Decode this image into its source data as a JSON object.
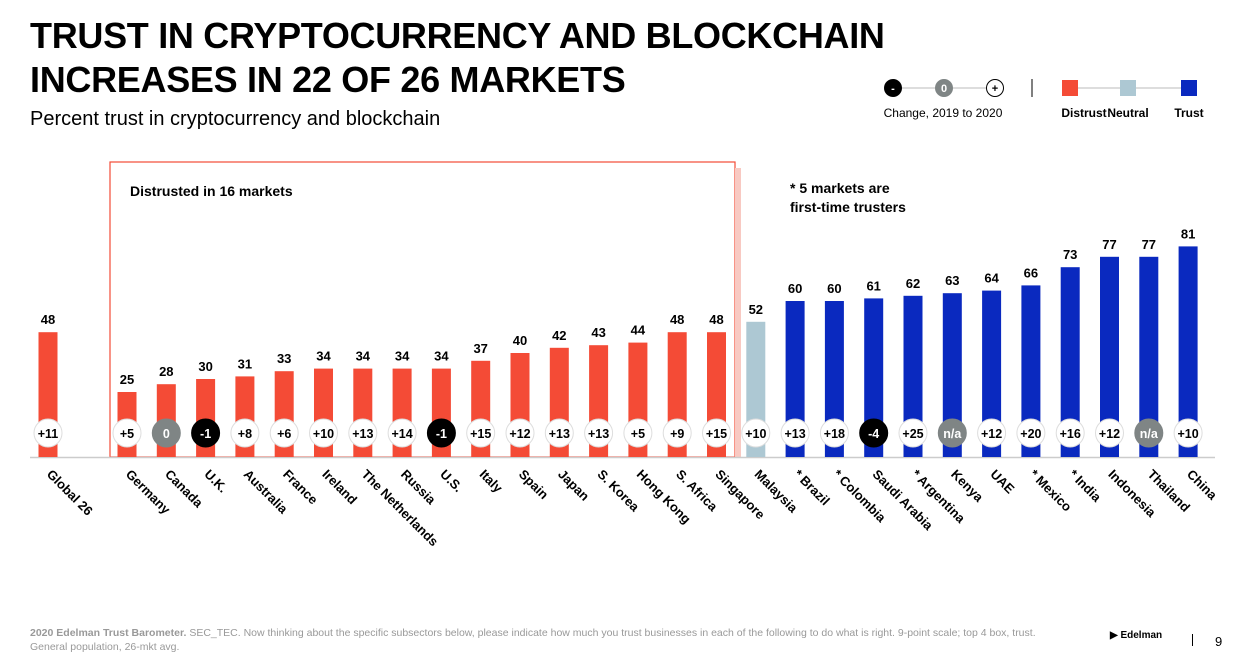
{
  "title_line1": "TRUST IN CRYPTOCURRENCY AND BLOCKCHAIN",
  "title_line2": "INCREASES IN 22 OF 26 MARKETS",
  "subtitle": "Percent trust in cryptocurrency and blockchain",
  "legend": {
    "change_label": "Change, 2019 to 2020",
    "change_symbols": [
      "-",
      "0",
      "+"
    ],
    "distrust": "Distrust",
    "neutral": "Neutral",
    "trust": "Trust"
  },
  "colors": {
    "distrust": "#F44B36",
    "neutral": "#ADC8D3",
    "trust": "#0A29BF",
    "neg": "#000000",
    "zero": "#7F8585"
  },
  "annotations": {
    "box": "Distrusted in 16 markets",
    "first_time_1": "* 5 markets are",
    "first_time_2": "first-time trusters"
  },
  "chart_data": {
    "type": "bar",
    "ylim": [
      0,
      100
    ],
    "categories": [
      "Global 26",
      "Germany",
      "Canada",
      "U.K.",
      "Australia",
      "France",
      "Ireland",
      "The Netherlands",
      "Russia",
      "U.S.",
      "Italy",
      "Spain",
      "Japan",
      "S. Korea",
      "Hong Kong",
      "S. Africa",
      "Singapore",
      "Malaysia",
      "* Brazil",
      "* Colombia",
      "Saudi Arabia",
      "* Argentina",
      "Kenya",
      "UAE",
      "* Mexico",
      "* India",
      "Indonesia",
      "Thailand",
      "China"
    ],
    "values": [
      48,
      25,
      28,
      30,
      31,
      33,
      34,
      34,
      34,
      34,
      37,
      40,
      42,
      43,
      44,
      48,
      48,
      52,
      60,
      60,
      61,
      62,
      63,
      64,
      66,
      73,
      77,
      77,
      81
    ],
    "class": [
      "distrust",
      "distrust",
      "distrust",
      "distrust",
      "distrust",
      "distrust",
      "distrust",
      "distrust",
      "distrust",
      "distrust",
      "distrust",
      "distrust",
      "distrust",
      "distrust",
      "distrust",
      "distrust",
      "distrust",
      "neutral",
      "trust",
      "trust",
      "trust",
      "trust",
      "trust",
      "trust",
      "trust",
      "trust",
      "trust",
      "trust",
      "trust"
    ],
    "change": [
      "+11",
      "+5",
      "0",
      "-1",
      "+8",
      "+6",
      "+10",
      "+13",
      "+14",
      "-1",
      "+15",
      "+12",
      "+13",
      "+13",
      "+5",
      "+9",
      "+15",
      "+10",
      "+13",
      "+18",
      "-4",
      "+25",
      "n/a",
      "+12",
      "+20",
      "+16",
      "+12",
      "n/a",
      "+10"
    ]
  },
  "footer": {
    "source_bold": "2020 Edelman Trust Barometer.",
    "source": " SEC_TEC. Now thinking about the specific subsectors below, please indicate how much you trust businesses in each of the following to do what is right. 9-point scale; top 4 box, trust. General population, 26-mkt avg.",
    "brand": "Edelman",
    "page": "9"
  }
}
